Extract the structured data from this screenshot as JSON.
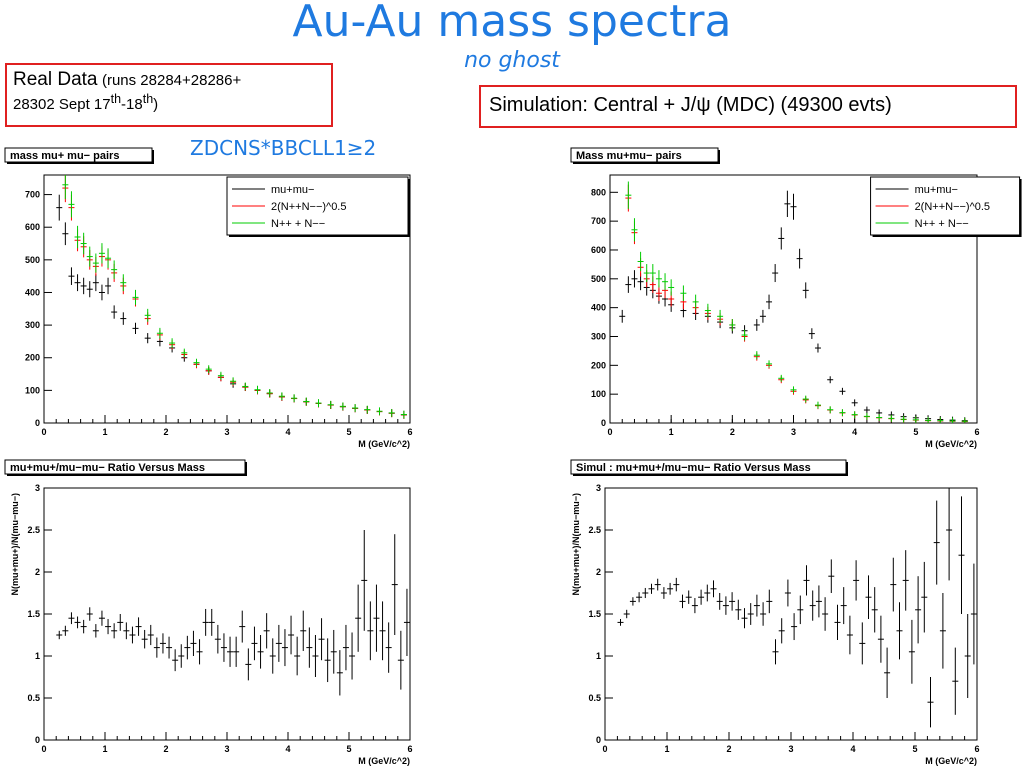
{
  "header": {
    "title": "Au-Au mass spectra",
    "subtitle": "no ghost",
    "cut": "ZDCNS*BBCLL1≥2"
  },
  "real_box": {
    "main": "Real Data",
    "small": "(runs 28284+28286+",
    "line2a": "28302 Sept 17",
    "sup1": "th",
    "dash": "-18",
    "sup2": "th",
    "close": ")"
  },
  "sim_box": {
    "text": "Simulation: Central + J/ψ (MDC)  (49300 evts)"
  },
  "colors": {
    "title": "#1f7ae0",
    "black": "#000000",
    "red": "#ff0000",
    "green": "#00cc00",
    "frame": "#e02020"
  },
  "legend": {
    "pairs": "mu+mu−",
    "geo": "2(N++N−−)^0.5",
    "sum": "N++ + N−−"
  },
  "chart_data": [
    {
      "type": "scatter",
      "panel": "real_mass",
      "title": "mass mu+ mu− pairs",
      "xlabel": "M (GeV/c^2)",
      "ylabel": "",
      "xlim": [
        0,
        6
      ],
      "ylim": [
        0,
        760
      ],
      "xticks": [
        "0",
        "1",
        "2",
        "3",
        "4",
        "5",
        "6"
      ],
      "yticks": [
        "0",
        "100",
        "200",
        "300",
        "400",
        "500",
        "600",
        "700"
      ],
      "series": [
        {
          "name": "mu+mu−",
          "color": "#000000",
          "x": [
            0.25,
            0.35,
            0.45,
            0.55,
            0.65,
            0.75,
            0.85,
            0.95,
            1.05,
            1.15,
            1.3,
            1.5,
            1.7,
            1.9,
            2.1,
            2.3,
            2.5,
            2.7,
            2.9,
            3.1,
            3.3,
            3.5,
            3.7,
            3.9,
            4.1,
            4.3,
            4.5,
            4.7,
            4.9,
            5.1,
            5.3,
            5.5,
            5.7,
            5.9
          ],
          "y": [
            660,
            580,
            450,
            430,
            420,
            410,
            430,
            400,
            420,
            340,
            320,
            290,
            260,
            250,
            230,
            200,
            180,
            160,
            140,
            120,
            110,
            100,
            90,
            80,
            75,
            65,
            60,
            55,
            50,
            45,
            40,
            35,
            30,
            25
          ]
        },
        {
          "name": "2(N++N−−)^0.5",
          "color": "#ff0000",
          "x": [
            0.35,
            0.45,
            0.55,
            0.65,
            0.75,
            0.85,
            0.95,
            1.05,
            1.15,
            1.3,
            1.5,
            1.7,
            1.9,
            2.1,
            2.3,
            2.5,
            2.7,
            2.9,
            3.1,
            3.3,
            3.5,
            3.7,
            3.9,
            4.1,
            4.3,
            4.5,
            4.7,
            4.9,
            5.1,
            5.3,
            5.5,
            5.7,
            5.9
          ],
          "y": [
            720,
            660,
            560,
            540,
            500,
            480,
            510,
            500,
            460,
            420,
            380,
            320,
            270,
            240,
            210,
            180,
            160,
            140,
            125,
            110,
            100,
            90,
            80,
            75,
            65,
            60,
            55,
            50,
            45,
            40,
            35,
            30,
            25
          ]
        },
        {
          "name": "N++ + N−−",
          "color": "#00cc00",
          "x": [
            0.35,
            0.45,
            0.55,
            0.65,
            0.75,
            0.85,
            0.95,
            1.05,
            1.15,
            1.3,
            1.5,
            1.7,
            1.9,
            2.1,
            2.3,
            2.5,
            2.7,
            2.9,
            3.1,
            3.3,
            3.5,
            3.7,
            3.9,
            4.1,
            4.3,
            4.5,
            4.7,
            4.9,
            5.1,
            5.3,
            5.5,
            5.7,
            5.9
          ],
          "y": [
            730,
            670,
            570,
            550,
            510,
            490,
            520,
            505,
            470,
            430,
            385,
            330,
            275,
            245,
            215,
            185,
            165,
            145,
            128,
            112,
            102,
            92,
            82,
            76,
            66,
            61,
            56,
            51,
            46,
            41,
            36,
            31,
            26
          ]
        }
      ]
    },
    {
      "type": "scatter",
      "panel": "sim_mass",
      "title": "Mass mu+mu− pairs",
      "xlabel": "M (GeV/c^2)",
      "ylabel": "",
      "xlim": [
        0,
        6
      ],
      "ylim": [
        0,
        860
      ],
      "xticks": [
        "0",
        "1",
        "2",
        "3",
        "4",
        "5",
        "6"
      ],
      "yticks": [
        "0",
        "100",
        "200",
        "300",
        "400",
        "500",
        "600",
        "700",
        "800"
      ],
      "series": [
        {
          "name": "mu+mu−",
          "color": "#000000",
          "x": [
            0.2,
            0.3,
            0.4,
            0.5,
            0.6,
            0.7,
            0.8,
            0.9,
            1.0,
            1.2,
            1.4,
            1.6,
            1.8,
            2.0,
            2.2,
            2.4,
            2.5,
            2.6,
            2.7,
            2.8,
            2.9,
            3.0,
            3.1,
            3.2,
            3.3,
            3.4,
            3.6,
            3.8,
            4.0,
            4.2,
            4.4,
            4.6,
            4.8,
            5.0,
            5.2,
            5.4,
            5.6,
            5.8
          ],
          "y": [
            370,
            480,
            500,
            490,
            470,
            460,
            440,
            430,
            410,
            390,
            380,
            370,
            350,
            330,
            320,
            340,
            370,
            420,
            520,
            640,
            760,
            750,
            570,
            460,
            310,
            260,
            150,
            110,
            70,
            45,
            35,
            28,
            22,
            18,
            15,
            12,
            10,
            8
          ]
        },
        {
          "name": "2(N++N−−)^0.5",
          "color": "#ff0000",
          "x": [
            0.3,
            0.4,
            0.5,
            0.6,
            0.7,
            0.8,
            0.9,
            1.0,
            1.2,
            1.4,
            1.6,
            1.8,
            2.0,
            2.2,
            2.4,
            2.6,
            2.8,
            3.0,
            3.2,
            3.4,
            3.6,
            3.8,
            4.0,
            4.2,
            4.4,
            4.6,
            4.8,
            5.0,
            5.2,
            5.4,
            5.6,
            5.8
          ],
          "y": [
            780,
            660,
            540,
            500,
            480,
            450,
            460,
            430,
            420,
            400,
            380,
            360,
            340,
            300,
            230,
            200,
            150,
            110,
            80,
            60,
            45,
            35,
            28,
            22,
            18,
            15,
            12,
            10,
            8,
            7,
            6,
            5
          ]
        },
        {
          "name": "N++ + N−−",
          "color": "#00cc00",
          "x": [
            0.3,
            0.4,
            0.5,
            0.6,
            0.7,
            0.8,
            0.9,
            1.0,
            1.2,
            1.4,
            1.6,
            1.8,
            2.0,
            2.2,
            2.4,
            2.6,
            2.8,
            3.0,
            3.2,
            3.4,
            3.6,
            3.8,
            4.0,
            4.2,
            4.4,
            4.6,
            4.8,
            5.0,
            5.2,
            5.4,
            5.6,
            5.8
          ],
          "y": [
            790,
            670,
            560,
            520,
            520,
            500,
            490,
            470,
            450,
            420,
            390,
            370,
            340,
            305,
            235,
            205,
            155,
            115,
            83,
            62,
            46,
            36,
            29,
            23,
            19,
            16,
            13,
            11,
            9,
            8,
            7,
            6
          ]
        }
      ]
    },
    {
      "type": "scatter",
      "panel": "real_ratio",
      "title": "mu+mu+/mu−mu− Ratio Versus Mass",
      "xlabel": "M (GeV/c^2)",
      "ylabel": "N(mu+mu+)/N(mu−mu−)",
      "xlim": [
        0,
        6
      ],
      "ylim": [
        0,
        3
      ],
      "xticks": [
        "0",
        "1",
        "2",
        "3",
        "4",
        "5",
        "6"
      ],
      "yticks": [
        "0",
        "0.5",
        "1",
        "1.5",
        "2",
        "2.5",
        "3"
      ],
      "series": [
        {
          "name": "",
          "color": "#000000",
          "x": [
            0.25,
            0.35,
            0.45,
            0.55,
            0.65,
            0.75,
            0.85,
            0.95,
            1.05,
            1.15,
            1.25,
            1.35,
            1.45,
            1.55,
            1.65,
            1.75,
            1.85,
            1.95,
            2.05,
            2.15,
            2.25,
            2.35,
            2.45,
            2.55,
            2.65,
            2.75,
            2.85,
            2.95,
            3.05,
            3.15,
            3.25,
            3.35,
            3.45,
            3.55,
            3.65,
            3.75,
            3.85,
            3.95,
            4.05,
            4.15,
            4.25,
            4.35,
            4.45,
            4.55,
            4.65,
            4.75,
            4.85,
            4.95,
            5.05,
            5.15,
            5.25,
            5.35,
            5.45,
            5.55,
            5.65,
            5.75,
            5.85,
            5.95
          ],
          "y": [
            1.25,
            1.3,
            1.45,
            1.4,
            1.35,
            1.5,
            1.3,
            1.45,
            1.35,
            1.3,
            1.4,
            1.3,
            1.25,
            1.35,
            1.2,
            1.25,
            1.1,
            1.15,
            1.1,
            0.95,
            1.0,
            1.1,
            1.15,
            1.05,
            1.4,
            1.4,
            1.2,
            1.1,
            1.05,
            1.05,
            1.35,
            0.9,
            1.15,
            1.05,
            1.3,
            1.0,
            1.15,
            1.1,
            1.25,
            1.0,
            1.3,
            1.1,
            1.0,
            1.2,
            0.95,
            1.05,
            0.8,
            1.1,
            1.0,
            1.45,
            1.9,
            1.3,
            1.45,
            1.3,
            1.1,
            1.85,
            0.95,
            1.4
          ],
          "err": [
            0.05,
            0.06,
            0.07,
            0.07,
            0.08,
            0.08,
            0.08,
            0.09,
            0.09,
            0.09,
            0.1,
            0.1,
            0.1,
            0.11,
            0.11,
            0.12,
            0.12,
            0.12,
            0.13,
            0.13,
            0.14,
            0.14,
            0.15,
            0.15,
            0.16,
            0.16,
            0.17,
            0.17,
            0.18,
            0.18,
            0.19,
            0.19,
            0.2,
            0.2,
            0.21,
            0.21,
            0.22,
            0.22,
            0.23,
            0.23,
            0.24,
            0.24,
            0.25,
            0.25,
            0.26,
            0.26,
            0.27,
            0.27,
            0.28,
            0.4,
            0.6,
            0.35,
            0.4,
            0.35,
            0.3,
            0.6,
            0.35,
            0.4
          ]
        }
      ]
    },
    {
      "type": "scatter",
      "panel": "sim_ratio",
      "title": "Simul : mu+mu+/mu−mu− Ratio Versus Mass",
      "xlabel": "M (GeV/c^2)",
      "ylabel": "N(mu+mu+)/N(mu−mu−)",
      "xlim": [
        0,
        6
      ],
      "ylim": [
        0,
        3
      ],
      "xticks": [
        "0",
        "1",
        "2",
        "3",
        "4",
        "5",
        "6"
      ],
      "yticks": [
        "0",
        "0.5",
        "1",
        "1.5",
        "2",
        "2.5",
        "3"
      ],
      "series": [
        {
          "name": "",
          "color": "#000000",
          "x": [
            0.25,
            0.35,
            0.45,
            0.55,
            0.65,
            0.75,
            0.85,
            0.95,
            1.05,
            1.15,
            1.25,
            1.35,
            1.45,
            1.55,
            1.65,
            1.75,
            1.85,
            1.95,
            2.05,
            2.15,
            2.25,
            2.35,
            2.45,
            2.55,
            2.65,
            2.75,
            2.85,
            2.95,
            3.05,
            3.15,
            3.25,
            3.35,
            3.45,
            3.55,
            3.65,
            3.75,
            3.85,
            3.95,
            4.05,
            4.15,
            4.25,
            4.35,
            4.45,
            4.55,
            4.65,
            4.75,
            4.85,
            4.95,
            5.05,
            5.15,
            5.25,
            5.35,
            5.45,
            5.55,
            5.65,
            5.75,
            5.85,
            5.95
          ],
          "y": [
            1.4,
            1.5,
            1.65,
            1.7,
            1.75,
            1.8,
            1.85,
            1.75,
            1.8,
            1.85,
            1.65,
            1.7,
            1.6,
            1.7,
            1.75,
            1.8,
            1.65,
            1.6,
            1.65,
            1.55,
            1.45,
            1.5,
            1.6,
            1.5,
            1.65,
            1.05,
            1.3,
            1.75,
            1.35,
            1.55,
            1.9,
            1.6,
            1.65,
            1.5,
            1.95,
            1.4,
            1.6,
            1.25,
            1.9,
            1.15,
            1.7,
            1.55,
            1.2,
            0.8,
            1.85,
            1.3,
            1.9,
            1.05,
            1.55,
            1.7,
            0.45,
            2.35,
            1.3,
            2.5,
            0.7,
            2.2,
            1.0,
            1.5
          ],
          "err": [
            0.04,
            0.05,
            0.05,
            0.06,
            0.06,
            0.06,
            0.07,
            0.07,
            0.07,
            0.08,
            0.08,
            0.08,
            0.09,
            0.09,
            0.1,
            0.1,
            0.1,
            0.11,
            0.11,
            0.12,
            0.12,
            0.13,
            0.13,
            0.14,
            0.14,
            0.15,
            0.15,
            0.16,
            0.16,
            0.17,
            0.18,
            0.18,
            0.19,
            0.2,
            0.2,
            0.21,
            0.22,
            0.23,
            0.24,
            0.25,
            0.26,
            0.27,
            0.28,
            0.3,
            0.32,
            0.34,
            0.36,
            0.38,
            0.4,
            0.42,
            0.3,
            0.5,
            0.45,
            0.6,
            0.4,
            0.7,
            0.5,
            0.6
          ]
        }
      ]
    }
  ]
}
